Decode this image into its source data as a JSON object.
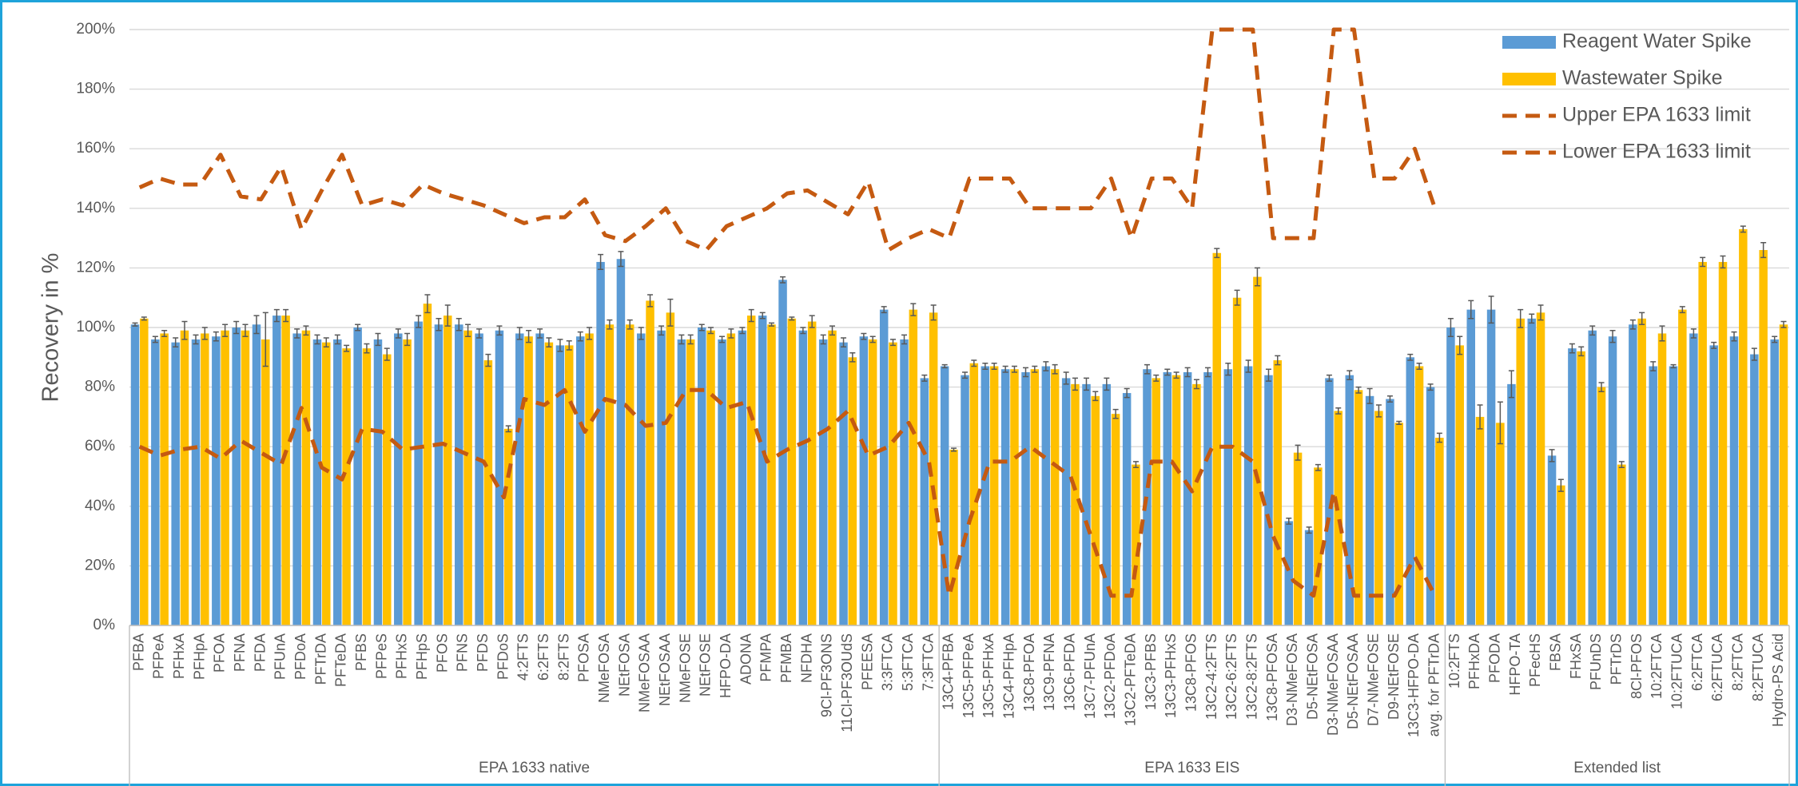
{
  "chart_data": {
    "type": "bar",
    "y_label": "Recovery in %",
    "ylim": [
      0,
      200
    ],
    "yticks": [
      {
        "value": 0,
        "label": "0%"
      },
      {
        "value": 20,
        "label": "20%"
      },
      {
        "value": 40,
        "label": "40%"
      },
      {
        "value": 60,
        "label": "60%"
      },
      {
        "value": 80,
        "label": "80%"
      },
      {
        "value": 100,
        "label": "100%"
      },
      {
        "value": 120,
        "label": "120%"
      },
      {
        "value": 140,
        "label": "140%"
      },
      {
        "value": 160,
        "label": "160%"
      },
      {
        "value": 180,
        "label": "180%"
      },
      {
        "value": 200,
        "label": "200%"
      }
    ],
    "grid": true,
    "legend": "upper right",
    "groups": [
      {
        "name": "EPA 1633 native",
        "categories": [
          "PFBA",
          "PFPeA",
          "PFHxA",
          "PFHpA",
          "PFOA",
          "PFNA",
          "PFDA",
          "PFUnA",
          "PFDoA",
          "PFTrDA",
          "PFTeDA",
          "PFBS",
          "PFPeS",
          "PFHxS",
          "PFHpS",
          "PFOS",
          "PFNS",
          "PFDS",
          "PFDoS",
          "4:2FTS",
          "6:2FTS",
          "8:2FTS",
          "PFOSA",
          "NMeFOSA",
          "NEtFOSA",
          "NMeFOSAA",
          "NEtFOSAA",
          "NMeFOSE",
          "NEtFOSE",
          "HFPO-DA",
          "ADONA",
          "PFMPA",
          "PFMBA",
          "NFDHA",
          "9Cl-PF3ONS",
          "11Cl-PF3OUdS",
          "PFEESA",
          "3:3FTCA",
          "5:3FTCA",
          "7:3FTCA"
        ]
      },
      {
        "name": "EPA 1633 EIS",
        "categories": [
          "13C4-PFBA",
          "13C5-PFPeA",
          "13C5-PFHxA",
          "13C4-PFHpA",
          "13C8-PFOA",
          "13C9-PFNA",
          "13C6-PFDA",
          "13C7-PFUnA",
          "13C2-PFDoA",
          "13C2-PFTeDA",
          "13C3-PFBS",
          "13C3-PFHxS",
          "13C8-PFOS",
          "13C2-4:2FTS",
          "13C2-6:2FTS",
          "13C2-8:2FTS",
          "13C8-PFOSA",
          "D3-NMeFOSA",
          "D5-NEtFOSA",
          "D3-NMeFOSAA",
          "D5-NEtFOSAA",
          "D7-NMeFOSE",
          "D9-NEtFOSE",
          "13C3-HFPO-DA",
          "avg. for PFTrDA"
        ]
      },
      {
        "name": "Extended list",
        "categories": [
          "10:2FTS",
          "PFHxDA",
          "PFODA",
          "HFPO-TA",
          "PFecHS",
          "FBSA",
          "FHxSA",
          "PFUnDS",
          "PFTrDS",
          "8Cl-PFOS",
          "10:2FTCA",
          "10:2FTUCA",
          "6:2FTCA",
          "6:2FTUCA",
          "8:2FTCA",
          "8:2FTUCA",
          "Hydro-PS Acid"
        ]
      }
    ],
    "series": [
      {
        "name": "Reagent Water Spike",
        "type": "bar",
        "color": "#5b9bd5",
        "values": [
          101,
          96,
          95,
          96,
          97,
          100,
          101,
          104,
          98,
          96,
          96,
          100,
          96,
          98,
          102,
          101,
          101,
          98,
          99,
          98,
          98,
          94,
          97,
          122,
          123,
          98,
          99,
          96,
          100,
          96,
          99,
          104,
          116,
          99,
          96,
          95,
          97,
          106,
          96,
          83,
          87,
          84,
          87,
          86,
          85,
          87,
          83,
          81,
          81,
          78,
          86,
          85,
          85,
          85,
          86,
          87,
          84,
          35,
          32,
          83,
          84,
          77,
          76,
          90,
          80,
          100,
          106,
          106,
          81,
          103,
          57,
          93,
          99,
          97,
          101,
          87,
          87,
          98,
          94,
          97,
          91,
          96
        ],
        "errors": [
          0.5,
          1,
          1.5,
          1.5,
          1.5,
          2,
          3,
          2,
          1.5,
          1.5,
          1.5,
          1,
          2,
          1.5,
          2,
          2,
          2,
          1.5,
          1.5,
          2,
          1.5,
          2,
          1.5,
          2.5,
          2.5,
          2,
          1.5,
          1.5,
          1,
          1,
          1,
          1,
          1,
          1,
          1.5,
          1.5,
          1,
          1,
          1.5,
          1,
          0.5,
          1,
          1,
          1,
          1.5,
          1.5,
          2,
          2,
          2,
          1.5,
          1.5,
          1,
          1.5,
          1.5,
          2,
          2,
          2,
          1,
          1,
          1,
          1.5,
          2.5,
          1,
          1,
          1,
          3,
          3,
          4.5,
          4.5,
          1.5,
          2,
          1.5,
          1.5,
          2,
          1.5,
          1.5,
          0.5,
          1.5,
          1,
          1.5,
          2,
          1
        ]
      },
      {
        "name": "Wastewater Spike",
        "type": "bar",
        "color": "#ffc000",
        "values": [
          103,
          98,
          99,
          98,
          99,
          99,
          96,
          104,
          99,
          95,
          93,
          93,
          91,
          96,
          108,
          104,
          99,
          89,
          66,
          97,
          95,
          94,
          98,
          101,
          101,
          109,
          105,
          96,
          99,
          98,
          104,
          101,
          103,
          102,
          99,
          90,
          96,
          95,
          106,
          105,
          59,
          88,
          87,
          86,
          86,
          86,
          81,
          77,
          71,
          54,
          83,
          84,
          81,
          125,
          110,
          117,
          89,
          58,
          53,
          72,
          79,
          72,
          68,
          87,
          63,
          94,
          70,
          68,
          103,
          105,
          47,
          92,
          80,
          54,
          103,
          98,
          106,
          122,
          122,
          133,
          126,
          101
        ],
        "errors": [
          0.5,
          1,
          3,
          2,
          2,
          2,
          9,
          2,
          1.5,
          1.5,
          1,
          1.5,
          2,
          2,
          3,
          3.5,
          2,
          2,
          1,
          2,
          1.5,
          1.5,
          2,
          1.5,
          1.5,
          2,
          4.5,
          1.5,
          1,
          1.5,
          2,
          0.5,
          0.5,
          2,
          1.5,
          1.5,
          1,
          1,
          2,
          2.5,
          0.5,
          1,
          1,
          1,
          1,
          1.5,
          2,
          1.5,
          1.5,
          1,
          1,
          1,
          1.5,
          1.5,
          2.5,
          3,
          1.5,
          2.5,
          1,
          1,
          1,
          2,
          0.5,
          1,
          1.5,
          3,
          4,
          7,
          3,
          2.5,
          2,
          1.5,
          1.5,
          1,
          2,
          2.5,
          1,
          1.5,
          2,
          1,
          2.5,
          1
        ]
      },
      {
        "name": "Upper EPA 1633 limit",
        "type": "line",
        "color": "#c55a11",
        "values": [
          147,
          150,
          148,
          148,
          158,
          144,
          143,
          154,
          133,
          146,
          158,
          141,
          143,
          141,
          148,
          145,
          143,
          141,
          138,
          135,
          137,
          137,
          143,
          131,
          129,
          134,
          140,
          129,
          126,
          134,
          137,
          140,
          145,
          146,
          142,
          138,
          149,
          126,
          130,
          133,
          130,
          150,
          150,
          150,
          140,
          140,
          140,
          140,
          150,
          130,
          150,
          150,
          140,
          200,
          200,
          200,
          130,
          130,
          130,
          200,
          200,
          150,
          150,
          160,
          140,
          null,
          null,
          null,
          null,
          null,
          null,
          null,
          null,
          null,
          null,
          null,
          null,
          null,
          null,
          null,
          null,
          null
        ]
      },
      {
        "name": "Lower EPA 1633 limit",
        "type": "line",
        "color": "#c55a11",
        "values": [
          60,
          57,
          59,
          60,
          56,
          62,
          58,
          54,
          73,
          53,
          49,
          66,
          65,
          59,
          60,
          61,
          58,
          55,
          43,
          76,
          74,
          79,
          65,
          76,
          74,
          67,
          68,
          79,
          79,
          73,
          75,
          55,
          59,
          62,
          66,
          72,
          57,
          60,
          68,
          55,
          10,
          35,
          55,
          55,
          60,
          55,
          50,
          30,
          10,
          10,
          55,
          55,
          45,
          60,
          60,
          55,
          30,
          15,
          10,
          45,
          10,
          10,
          10,
          23,
          10,
          null,
          null,
          null,
          null,
          null,
          null,
          null,
          null,
          null,
          null,
          null,
          null,
          null,
          null,
          null,
          null,
          null
        ]
      }
    ]
  }
}
